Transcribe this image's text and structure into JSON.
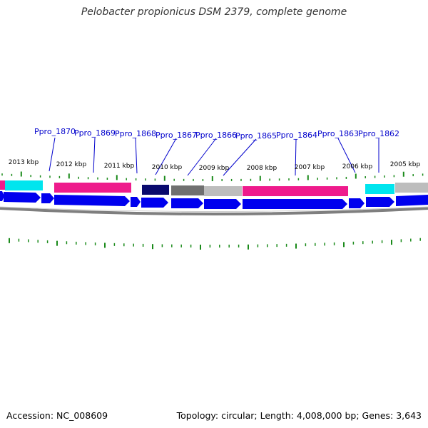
{
  "title": "Pelobacter propionicus DSM 2379, complete genome",
  "footer": {
    "accession_label": "Accession: NC_008609",
    "summary": "Topology: circular; Length: 4,008,000 bp; Genes: 3,643"
  },
  "colors": {
    "cds": "#0000ee",
    "pink": "#ee1b8c",
    "cyan": "#00e5ee",
    "navy": "#0a0a6e",
    "gray": "#707070",
    "lightgray": "#bdbdbd",
    "tick": "#1a8a1a",
    "label": "#0000cc",
    "backbone": "#7f7f7f"
  },
  "scale_labels": [
    "2013 kbp",
    "2012 kbp",
    "2011 kbp",
    "2010 kbp",
    "2009 kbp",
    "2008 kbp",
    "2007 kbp",
    "2006 kbp",
    "2005 kbp"
  ],
  "gene_labels": [
    "Ppro_1870",
    "Ppro_1869",
    "Ppro_1868",
    "Ppro_1867",
    "Ppro_1866",
    "Ppro_1865",
    "Ppro_1864",
    "Ppro_1863",
    "Ppro_1862"
  ]
}
